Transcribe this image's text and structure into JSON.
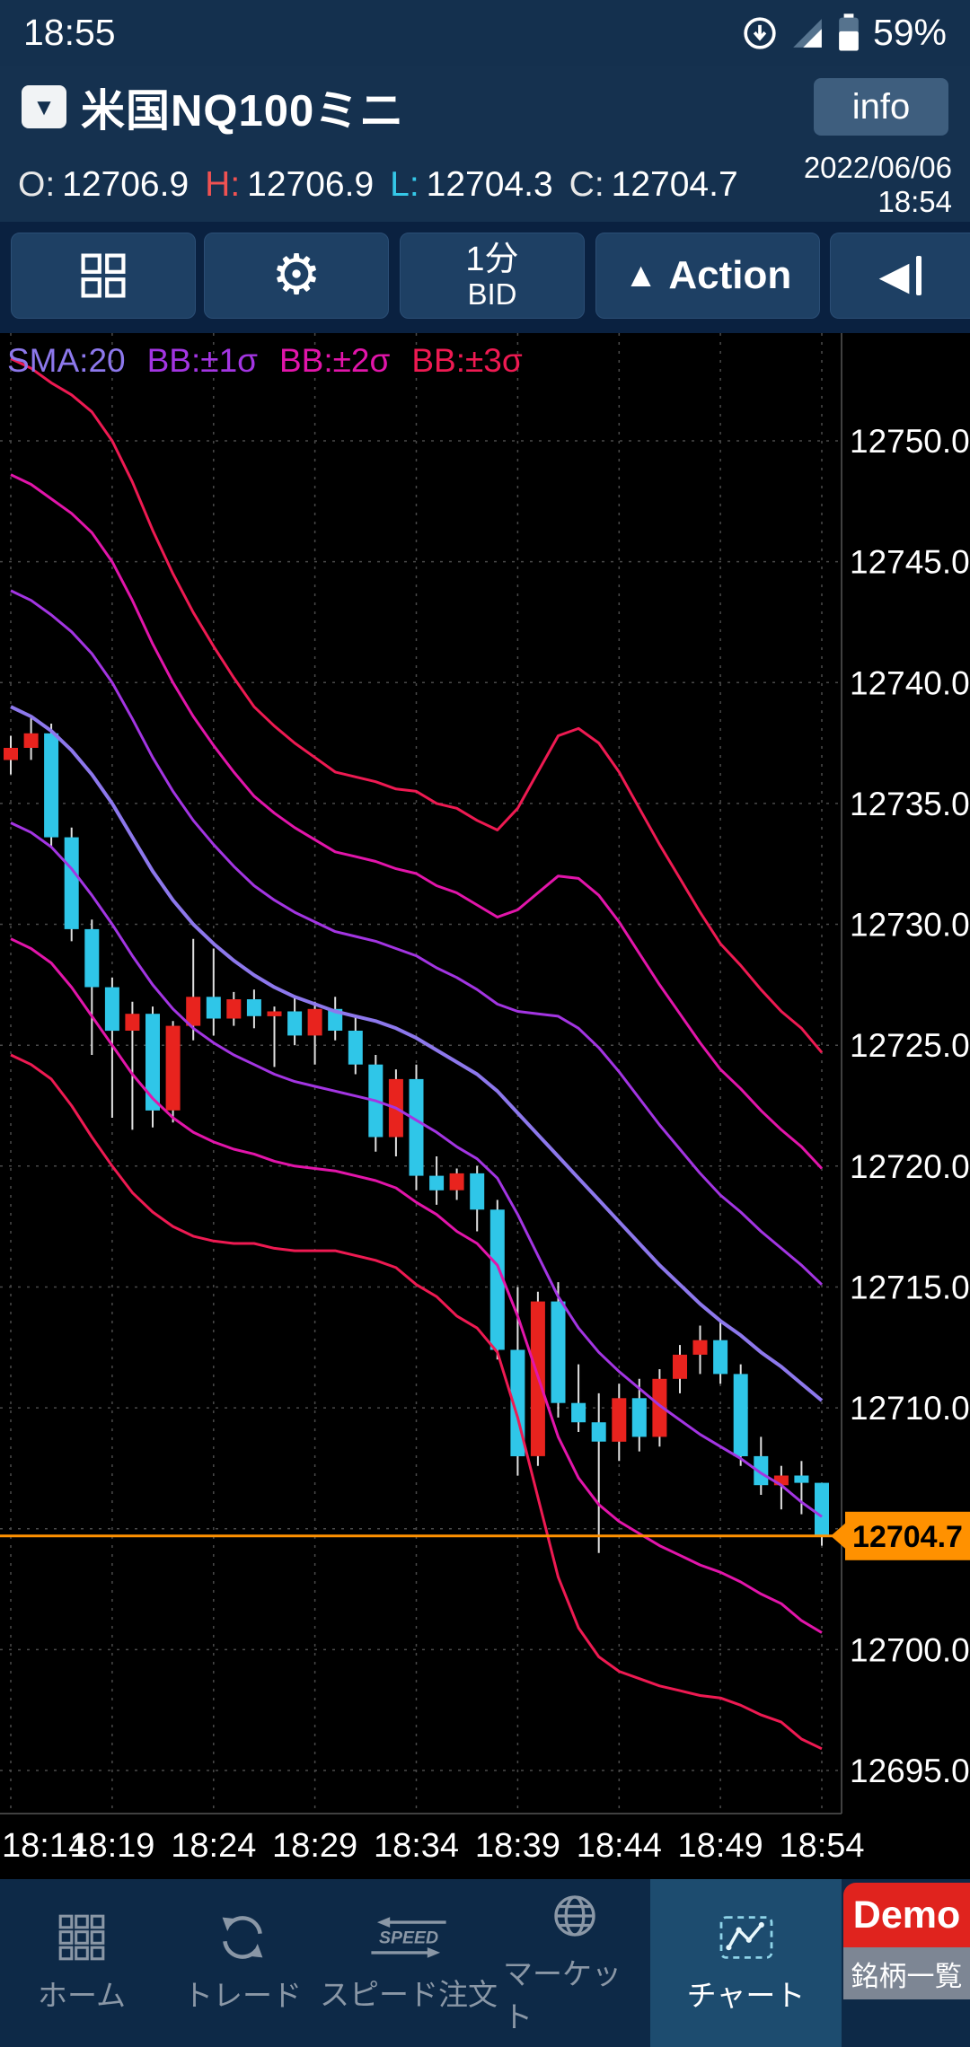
{
  "status_bar": {
    "time": "18:55",
    "battery": "59%"
  },
  "header": {
    "symbol": "米国NQ100ミニ",
    "info_label": "info",
    "ohlc": {
      "o_label": "O:",
      "o": "12706.9",
      "h_label": "H:",
      "h": "12706.9",
      "l_label": "L:",
      "l": "12704.3",
      "c_label": "C:",
      "c": "12704.7"
    },
    "date": "2022/06/06",
    "time": "18:54"
  },
  "toolbar": {
    "interval": "1分",
    "price_type": "BID",
    "action_label": "Action"
  },
  "icons": {
    "dropdown": "▼",
    "action_logo": "▲",
    "back": "◀",
    "gear": "⚙"
  },
  "bottom_nav": {
    "items": [
      {
        "label": "ホーム"
      },
      {
        "label": "トレード"
      },
      {
        "label": "スピード注文"
      },
      {
        "label": "マーケット"
      },
      {
        "label": "チャート",
        "active": true
      }
    ],
    "demo_label": "Demo",
    "symbol_list_label": "銘柄一覧"
  },
  "chart_data": {
    "type": "candlestick",
    "symbol": "米国NQ100ミニ",
    "interval": "1分",
    "price_source": "BID",
    "y_axis": {
      "min": 12695,
      "max": 12750,
      "step": 5
    },
    "x_ticks": [
      "18:14",
      "18:19",
      "18:24",
      "18:29",
      "18:34",
      "18:39",
      "18:44",
      "18:49",
      "18:54"
    ],
    "current_price": 12704.7,
    "current_price_color": "#ff9100",
    "up_color": "#e8231e",
    "down_color": "#2fc6e8",
    "wick_color": "#e0e0e0",
    "grid_color": "#4a4a4a",
    "axis_text_color": "#ffffff",
    "candles": [
      [
        "18:14",
        12736.8,
        12737.8,
        12736.2,
        12737.3
      ],
      [
        "18:15",
        12737.3,
        12738.6,
        12736.8,
        12737.9
      ],
      [
        "18:16",
        12737.9,
        12738.3,
        12733.2,
        12733.6
      ],
      [
        "18:17",
        12733.6,
        12734.0,
        12729.3,
        12729.8
      ],
      [
        "18:18",
        12729.8,
        12730.2,
        12724.6,
        12727.4
      ],
      [
        "18:19",
        12727.4,
        12727.8,
        12722.0,
        12725.6
      ],
      [
        "18:20",
        12725.6,
        12726.8,
        12721.5,
        12726.3
      ],
      [
        "18:21",
        12726.3,
        12726.6,
        12721.6,
        12722.3
      ],
      [
        "18:22",
        12722.3,
        12726.0,
        12721.8,
        12725.8
      ],
      [
        "18:23",
        12725.8,
        12729.4,
        12725.2,
        12727.0
      ],
      [
        "18:24",
        12727.0,
        12729.0,
        12725.4,
        12726.1
      ],
      [
        "18:25",
        12726.1,
        12727.2,
        12725.8,
        12726.9
      ],
      [
        "18:26",
        12726.9,
        12727.3,
        12725.7,
        12726.2
      ],
      [
        "18:27",
        12726.2,
        12726.6,
        12724.1,
        12726.4
      ],
      [
        "18:28",
        12726.4,
        12727.0,
        12725.0,
        12725.4
      ],
      [
        "18:29",
        12725.4,
        12726.8,
        12724.2,
        12726.5
      ],
      [
        "18:30",
        12726.5,
        12727.0,
        12725.2,
        12725.6
      ],
      [
        "18:31",
        12725.6,
        12726.2,
        12723.8,
        12724.2
      ],
      [
        "18:32",
        12724.2,
        12724.6,
        12720.6,
        12721.2
      ],
      [
        "18:33",
        12721.2,
        12724.0,
        12720.4,
        12723.6
      ],
      [
        "18:34",
        12723.6,
        12724.2,
        12719.0,
        12719.6
      ],
      [
        "18:35",
        12719.6,
        12720.4,
        12718.4,
        12719.0
      ],
      [
        "18:36",
        12719.0,
        12719.9,
        12718.6,
        12719.7
      ],
      [
        "18:37",
        12719.7,
        12720.0,
        12717.3,
        12718.2
      ],
      [
        "18:38",
        12718.2,
        12718.6,
        12712.0,
        12712.4
      ],
      [
        "18:39",
        12712.4,
        12715.0,
        12707.2,
        12708.0
      ],
      [
        "18:40",
        12708.0,
        12714.8,
        12707.6,
        12714.4
      ],
      [
        "18:41",
        12714.4,
        12715.2,
        12709.6,
        12710.2
      ],
      [
        "18:42",
        12710.2,
        12711.8,
        12709.0,
        12709.4
      ],
      [
        "18:43",
        12709.4,
        12710.6,
        12704.0,
        12708.6
      ],
      [
        "18:44",
        12708.6,
        12711.0,
        12707.8,
        12710.4
      ],
      [
        "18:45",
        12710.4,
        12711.2,
        12708.2,
        12708.8
      ],
      [
        "18:46",
        12708.8,
        12711.6,
        12708.4,
        12711.2
      ],
      [
        "18:47",
        12711.2,
        12712.6,
        12710.6,
        12712.2
      ],
      [
        "18:48",
        12712.2,
        12713.4,
        12711.4,
        12712.8
      ],
      [
        "18:49",
        12712.8,
        12713.6,
        12711.0,
        12711.4
      ],
      [
        "18:50",
        12711.4,
        12711.8,
        12707.6,
        12708.0
      ],
      [
        "18:51",
        12708.0,
        12708.8,
        12706.4,
        12706.8
      ],
      [
        "18:52",
        12706.8,
        12707.6,
        12705.8,
        12707.2
      ],
      [
        "18:53",
        12707.2,
        12707.8,
        12705.6,
        12706.9
      ],
      [
        "18:54",
        12706.9,
        12706.9,
        12704.3,
        12704.7
      ]
    ],
    "series": [
      {
        "name": "SMA:20",
        "kind": "sma",
        "period": 20,
        "color": "#8d78ec",
        "width": 4,
        "values": [
          12739.0,
          12738.6,
          12738.0,
          12737.2,
          12736.2,
          12735.0,
          12733.6,
          12732.2,
          12731.0,
          12730.0,
          12729.2,
          12728.5,
          12727.9,
          12727.4,
          12727.0,
          12726.7,
          12726.4,
          12726.2,
          12726.0,
          12725.7,
          12725.3,
          12724.8,
          12724.3,
          12723.8,
          12723.1,
          12722.2,
          12721.3,
          12720.4,
          12719.5,
          12718.6,
          12717.7,
          12716.8,
          12715.9,
          12715.1,
          12714.3,
          12713.6,
          12713.0,
          12712.3,
          12711.7,
          12711.0,
          12710.3
        ]
      },
      {
        "name": "BB:±1σ",
        "kind": "bollinger",
        "k": 1,
        "color": "#a335e2",
        "width": 3
      },
      {
        "name": "BB:±2σ",
        "kind": "bollinger",
        "k": 2,
        "color": "#e215aa",
        "width": 3
      },
      {
        "name": "BB:±3σ",
        "kind": "bollinger",
        "k": 3,
        "color": "#ee1a52",
        "width": 3
      }
    ],
    "bb_sigma": [
      4.8,
      4.8,
      4.8,
      4.9,
      5.0,
      5.0,
      4.9,
      4.7,
      4.5,
      4.3,
      4.1,
      3.9,
      3.7,
      3.6,
      3.5,
      3.4,
      3.3,
      3.3,
      3.3,
      3.3,
      3.4,
      3.4,
      3.5,
      3.5,
      3.6,
      4.2,
      5.0,
      5.8,
      6.2,
      6.3,
      6.2,
      6.0,
      5.8,
      5.6,
      5.4,
      5.2,
      5.1,
      5.0,
      4.9,
      4.9,
      4.8
    ]
  }
}
